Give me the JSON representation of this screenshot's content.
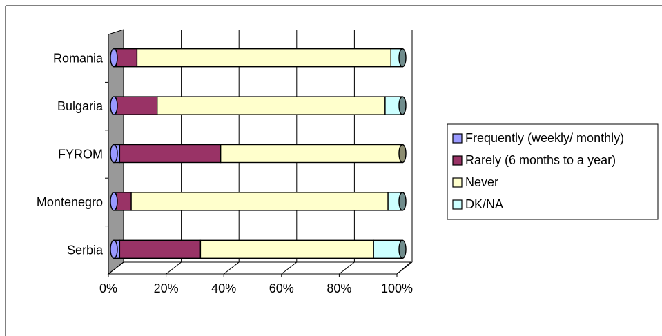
{
  "chart_data": {
    "type": "bar",
    "orientation": "horizontal",
    "stacked": "100%",
    "categories": [
      "Romania",
      "Bulgaria",
      "FYROM",
      "Montenegro",
      "Serbia"
    ],
    "series": [
      {
        "name": "Frequently (weekly/ monthly)",
        "color": "#9999ff",
        "values": [
          1,
          1,
          2,
          1,
          2
        ]
      },
      {
        "name": "Rarely (6 months to a year)",
        "color": "#993366",
        "values": [
          7,
          14,
          35,
          5,
          28
        ]
      },
      {
        "name": "Never",
        "color": "#ffffcc",
        "values": [
          88,
          79,
          63,
          89,
          60
        ]
      },
      {
        "name": "DK/NA",
        "color": "#ccffff",
        "values": [
          4,
          6,
          0,
          5,
          10
        ]
      }
    ],
    "x_ticks": [
      "0%",
      "20%",
      "40%",
      "60%",
      "80%",
      "100%"
    ],
    "xlim": [
      0,
      100
    ],
    "grid": true,
    "legend_position": "right"
  }
}
